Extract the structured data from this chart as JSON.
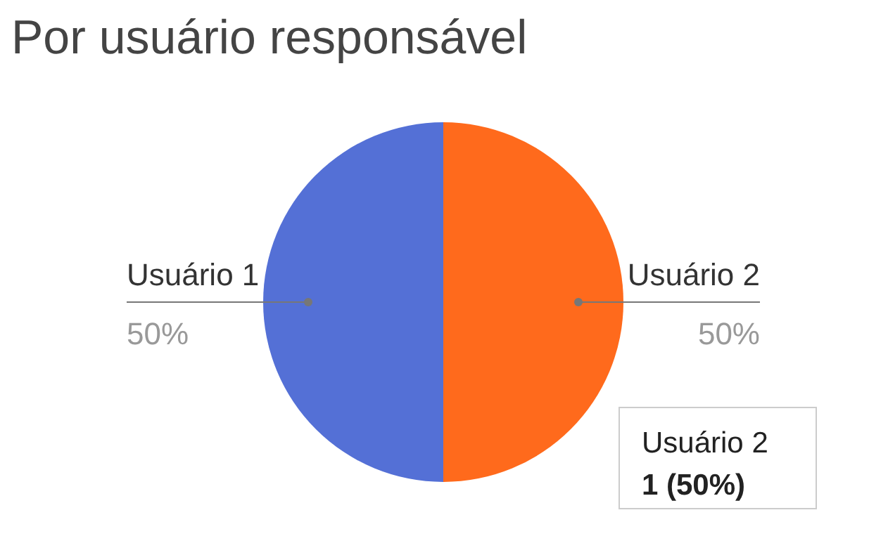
{
  "chart_data": {
    "type": "pie",
    "title": "Por usuário responsável",
    "categories": [
      "Usuário 1",
      "Usuário 2"
    ],
    "values": [
      50,
      50
    ],
    "colors": [
      "#5470d6",
      "#ff6a1c"
    ],
    "value_labels": [
      "50%",
      "50%"
    ],
    "annotations": [
      "Usuário 2",
      "1 (50%)"
    ]
  }
}
